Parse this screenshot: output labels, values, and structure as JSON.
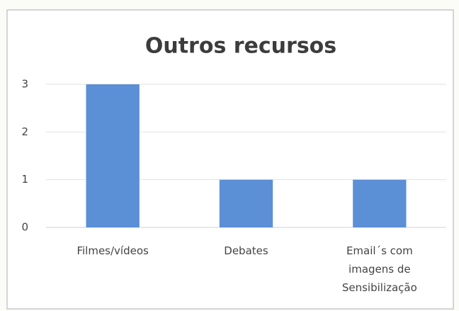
{
  "chart_data": {
    "type": "bar",
    "title": "Outros recursos",
    "categories": [
      "Filmes/vídeos",
      "Debates",
      "Email´s com imagens de Sensibilização"
    ],
    "values": [
      3,
      1,
      1
    ],
    "color": "#5b8fd6",
    "ylim": [
      0,
      3
    ],
    "yticks": [
      0,
      1,
      2,
      3
    ],
    "grid": true
  }
}
